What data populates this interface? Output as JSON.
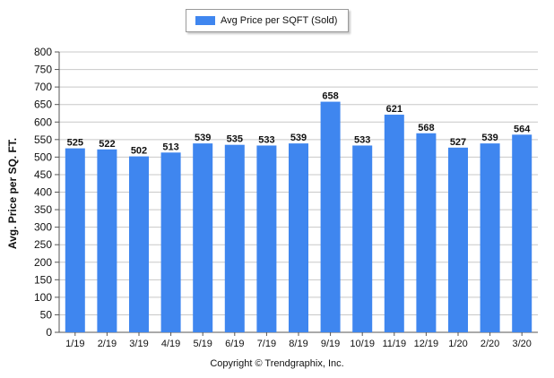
{
  "legend": {
    "label": "Avg Price per SQFT (Sold)"
  },
  "copyright": "Copyright © Trendgraphix, Inc.",
  "colors": {
    "bar": "#3f86ef",
    "grid": "#c8c8c8",
    "axis": "#555555",
    "text": "#111111"
  },
  "chart_data": {
    "type": "bar",
    "title": "",
    "xlabel": "",
    "ylabel": "Avg. Price per SQ. FT.",
    "ylim": [
      0,
      800
    ],
    "yticks": [
      0,
      50,
      100,
      150,
      200,
      250,
      300,
      350,
      400,
      450,
      500,
      550,
      600,
      650,
      700,
      750,
      800
    ],
    "grid": true,
    "legend_position": "top-center",
    "categories": [
      "1/19",
      "2/19",
      "3/19",
      "4/19",
      "5/19",
      "6/19",
      "7/19",
      "8/19",
      "9/19",
      "10/19",
      "11/19",
      "12/19",
      "1/20",
      "2/20",
      "3/20"
    ],
    "series": [
      {
        "name": "Avg Price per SQFT (Sold)",
        "values": [
          525,
          522,
          502,
          513,
          539,
          535,
          533,
          539,
          658,
          533,
          621,
          568,
          527,
          539,
          564
        ]
      }
    ]
  }
}
